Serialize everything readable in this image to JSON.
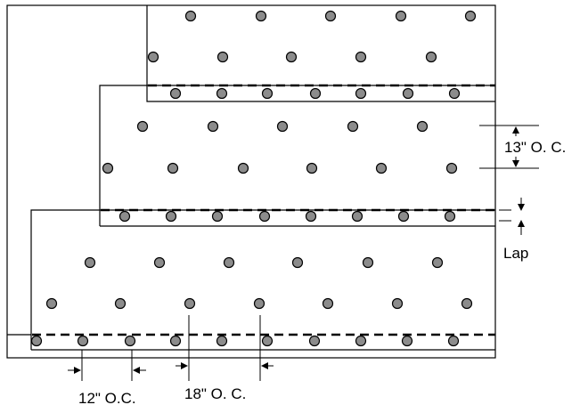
{
  "labels": {
    "row_spacing": "13\" O. C.",
    "lap": "Lap",
    "edge_spacing": "12\" O.C.",
    "field_spacing": "18\" O. C."
  },
  "colors": {
    "fastener_fill": "#8c8c8c",
    "line": "#000000",
    "background": "#ffffff"
  },
  "icons": {
    "fastener": "circle-dot",
    "dimension_arrow": "triangle-arrowhead"
  }
}
